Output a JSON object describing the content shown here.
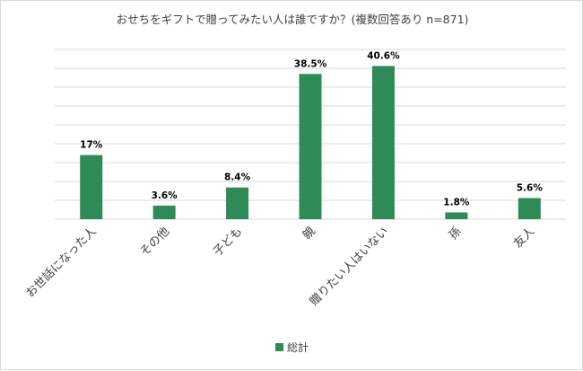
{
  "chart_data": {
    "type": "bar",
    "title": "おせちをギフトで贈ってみたい人は誰ですか？(複数回答あり n=871)",
    "categories": [
      "お世話になった人",
      "その他",
      "子ども",
      "親",
      "贈りたい人はいない",
      "孫",
      "友人"
    ],
    "series": [
      {
        "name": "総計",
        "values": [
          17,
          3.6,
          8.4,
          38.5,
          40.6,
          1.8,
          5.6
        ]
      }
    ],
    "data_labels": [
      "17%",
      "3.6%",
      "8.4%",
      "38.5%",
      "40.6%",
      "1.8%",
      "5.6%"
    ],
    "ylim": [
      0,
      45
    ],
    "y_unit": "%",
    "grid": true,
    "y_axis_labels": false,
    "legend_position": "bottom",
    "bar_color": "#2e8b57",
    "grid_color": "#d9d9d9"
  }
}
